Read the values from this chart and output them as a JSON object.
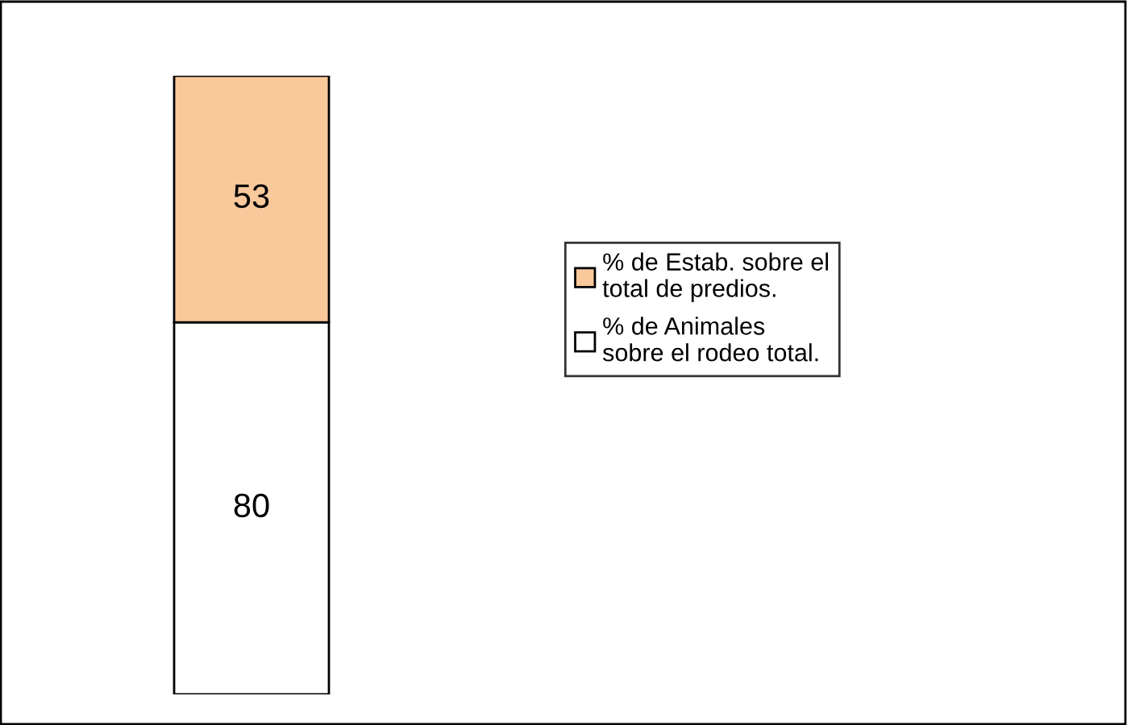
{
  "chart_data": {
    "type": "bar",
    "stacked": true,
    "categories": [
      null
    ],
    "data_labels": true,
    "legend": "right",
    "grid": false,
    "series": [
      {
        "name": "% de Animales\nsobre el rodeo total.",
        "color": "#ffffff",
        "values": [
          80
        ]
      },
      {
        "name": "% de Estab. sobre el\ntotal de predios.",
        "color": "#f9c89b",
        "values": [
          53
        ]
      }
    ]
  }
}
